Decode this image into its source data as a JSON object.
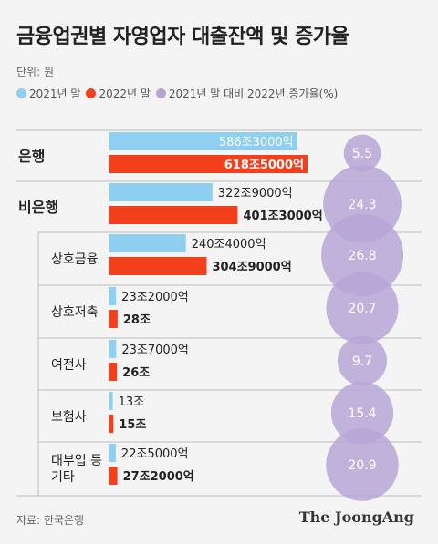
{
  "title": "금융업권별 자영업자 대출잔액 및 증가율",
  "unit_label": "단위: 원",
  "source": "자료: 한국은행",
  "brand": "The JoongAng",
  "colors": {
    "y2021": "#8fd0f2",
    "y2022": "#f2401d",
    "growth": "#b7a6d6",
    "divider": "#bdbdbd"
  },
  "chart_data": {
    "type": "bar",
    "legend": [
      "2021년 말",
      "2022년 말",
      "2021년 말 대비 2022년 증가율(%)"
    ],
    "categories": [
      {
        "label": "은행",
        "bold": true,
        "indent": false
      },
      {
        "label": "비은행",
        "bold": true,
        "indent": false
      },
      {
        "label": "상호금융",
        "bold": false,
        "indent": true
      },
      {
        "label": "상호저축",
        "bold": false,
        "indent": true
      },
      {
        "label": "여전사",
        "bold": false,
        "indent": true
      },
      {
        "label": "보험사",
        "bold": false,
        "indent": true
      },
      {
        "label": "대부업 등\n기타",
        "bold": false,
        "indent": true
      }
    ],
    "series": [
      {
        "name": "2021년 말",
        "values": [
          586.3,
          322.9,
          240.4,
          23.2,
          23.7,
          13,
          22.5
        ],
        "labels": [
          "586조3000억",
          "322조9000억",
          "240조4000억",
          "23조2000억",
          "23조7000억",
          "13조",
          "22조5000억"
        ]
      },
      {
        "name": "2022년 말",
        "values": [
          618.5,
          401.3,
          304.9,
          28,
          26,
          15,
          27.2
        ],
        "labels": [
          "618조5000억",
          "401조3000억",
          "304조9000억",
          "28조",
          "26조",
          "15조",
          "27조2000억"
        ]
      },
      {
        "name": "2021년 말 대비 2022년 증가율(%)",
        "values": [
          5.5,
          24.3,
          26.8,
          20.7,
          9.7,
          15.4,
          20.9
        ],
        "labels": [
          "5.5",
          "24.3",
          "26.8",
          "20.7",
          "9.7",
          "15.4",
          "20.9"
        ]
      }
    ]
  }
}
